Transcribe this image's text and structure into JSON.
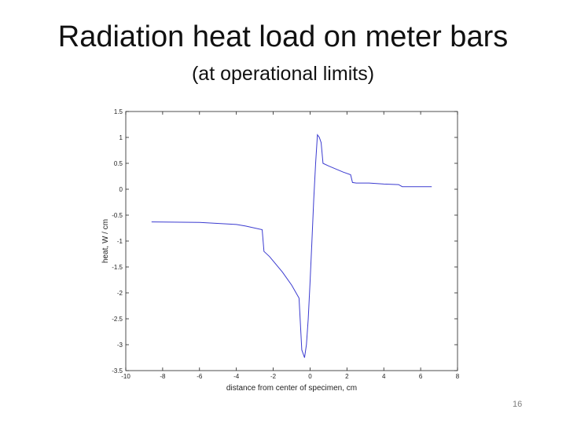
{
  "slide": {
    "title": "Radiation heat load on meter bars",
    "subtitle": "(at operational limits)",
    "page_number": "16"
  },
  "chart_data": {
    "type": "line",
    "title": "",
    "xlabel": "distance from center of specimen, cm",
    "ylabel": "heat, W / cm",
    "xlim": [
      -10,
      8
    ],
    "ylim": [
      -3.5,
      1.5
    ],
    "xticks": [
      -10,
      -8,
      -6,
      -4,
      -2,
      0,
      2,
      4,
      6,
      8
    ],
    "yticks": [
      1.5,
      1,
      0.5,
      0,
      -0.5,
      -1,
      -1.5,
      -2,
      -2.5,
      -3,
      -3.5
    ],
    "xtick_labels": [
      "-10",
      "-8",
      "-6",
      "-4",
      "-2",
      "0",
      "2",
      "4",
      "6",
      "8"
    ],
    "ytick_labels": [
      "1.5",
      "1",
      "0.5",
      "0",
      "-0.5",
      "-1",
      "-1.5",
      "-2",
      "-2.5",
      "-3",
      "-3.5"
    ],
    "grid": false,
    "line_color": "#3b3bd0",
    "series": [
      {
        "x": [
          -8.6,
          -6,
          -4,
          -3.5,
          -2.6,
          -2.5,
          -2.2,
          -1.5,
          -1.0,
          -0.6,
          -0.45,
          -0.3,
          -0.2,
          -0.1,
          0.0,
          0.1,
          0.2,
          0.3,
          0.4,
          0.5,
          0.6,
          0.7,
          1.0,
          1.8,
          2.2,
          2.3,
          2.5,
          3.2,
          4.0,
          4.8,
          5.0,
          6.0,
          6.6
        ],
        "y": [
          -0.63,
          -0.64,
          -0.68,
          -0.71,
          -0.78,
          -1.2,
          -1.3,
          -1.6,
          -1.85,
          -2.1,
          -3.1,
          -3.25,
          -3.0,
          -2.5,
          -1.8,
          -1.0,
          -0.2,
          0.5,
          1.05,
          1.0,
          0.9,
          0.5,
          0.45,
          0.33,
          0.28,
          0.13,
          0.12,
          0.12,
          0.1,
          0.09,
          0.05,
          0.05,
          0.05
        ]
      }
    ]
  }
}
